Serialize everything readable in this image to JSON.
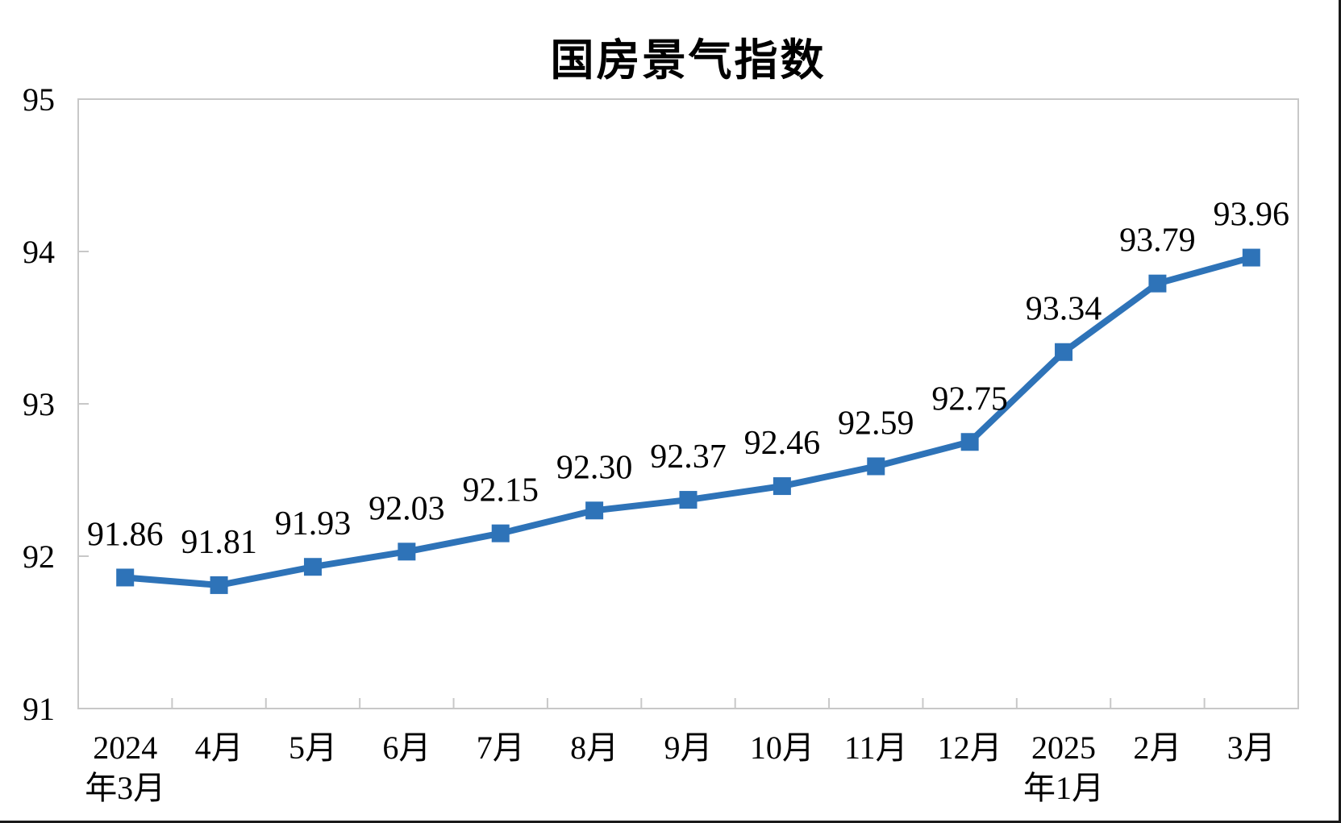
{
  "page": {
    "background": "#ffffff",
    "edge_border_color": "#1a1a1a"
  },
  "chart_data": {
    "type": "line",
    "title": "国房景气指数",
    "categories": [
      "2024年3月",
      "4月",
      "5月",
      "6月",
      "7月",
      "8月",
      "9月",
      "10月",
      "11月",
      "12月",
      "2025年1月",
      "2月",
      "3月"
    ],
    "x_label_lines": [
      [
        "2024",
        "年3月"
      ],
      [
        "4月"
      ],
      [
        "5月"
      ],
      [
        "6月"
      ],
      [
        "7月"
      ],
      [
        "8月"
      ],
      [
        "9月"
      ],
      [
        "10月"
      ],
      [
        "11月"
      ],
      [
        "12月"
      ],
      [
        "2025",
        "年1月"
      ],
      [
        "2月"
      ],
      [
        "3月"
      ]
    ],
    "series": [
      {
        "name": "国房景气指数",
        "values": [
          91.86,
          91.81,
          91.93,
          92.03,
          92.15,
          92.3,
          92.37,
          92.46,
          92.59,
          92.75,
          93.34,
          93.79,
          93.96
        ]
      }
    ],
    "data_labels": [
      "91.86",
      "91.81",
      "91.93",
      "92.03",
      "92.15",
      "92.30",
      "92.37",
      "92.46",
      "92.59",
      "92.75",
      "93.34",
      "93.79",
      "93.96"
    ],
    "xlabel": "",
    "ylabel": "",
    "ylim": [
      91,
      95
    ],
    "yticks": [
      "95",
      "94",
      "93",
      "92",
      "91"
    ],
    "ytick_values": [
      95,
      94,
      93,
      92,
      91
    ],
    "grid": false,
    "legend": false,
    "marker": "square",
    "colors": {
      "line": "#2E73B8",
      "marker": "#2E73B8",
      "axis": "#C8C8C8",
      "text": "#000000"
    }
  }
}
